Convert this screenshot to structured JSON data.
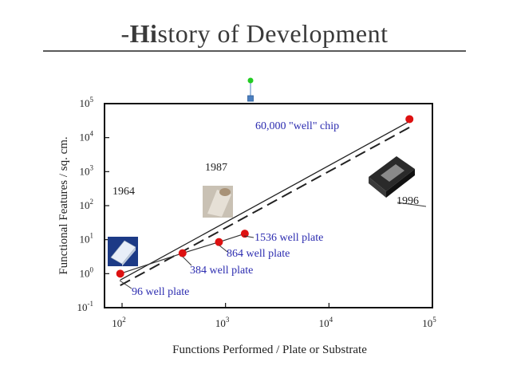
{
  "slide": {
    "title_prefix": "-",
    "title_bold": "Hi",
    "title_rest": "story of Development"
  },
  "colors": {
    "marker": "#dd1111",
    "annotation": "#2c2cb0",
    "handle_green": "#22cc22",
    "handle_blue": "#4a7fc0"
  },
  "chart_data": {
    "type": "line",
    "x_scale": "log",
    "y_scale": "log",
    "xlabel": "Functions Performed / Plate or Substrate",
    "ylabel": "Functional Features / sq. cm.",
    "xlim": [
      100,
      100000
    ],
    "ylim": [
      0.1,
      100000
    ],
    "x_ticks": [
      {
        "value": 100,
        "base": "10",
        "exp": "2"
      },
      {
        "value": 1000,
        "base": "10",
        "exp": "3"
      },
      {
        "value": 10000,
        "base": "10",
        "exp": "4"
      },
      {
        "value": 100000,
        "base": "10",
        "exp": "5"
      }
    ],
    "y_ticks": [
      {
        "value": 0.1,
        "base": "10",
        "exp": "-1"
      },
      {
        "value": 1,
        "base": "10",
        "exp": "0"
      },
      {
        "value": 10,
        "base": "10",
        "exp": "1"
      },
      {
        "value": 100,
        "base": "10",
        "exp": "2"
      },
      {
        "value": 1000,
        "base": "10",
        "exp": "3"
      },
      {
        "value": 10000,
        "base": "10",
        "exp": "4"
      },
      {
        "value": 100000,
        "base": "10",
        "exp": "5"
      }
    ],
    "points": [
      {
        "x": 96,
        "y": 1,
        "label": "96 well plate"
      },
      {
        "x": 384,
        "y": 4,
        "label": "384 well plate"
      },
      {
        "x": 864,
        "y": 8.5,
        "label": "864 well plate"
      },
      {
        "x": 1536,
        "y": 15,
        "label": "1536 well plate"
      },
      {
        "x": 60000,
        "y": 35000,
        "label": "60,000 \"well\" chip"
      }
    ],
    "trend_solid": [
      {
        "x": 96,
        "y": 0.65
      },
      {
        "x": 60000,
        "y": 30000
      }
    ],
    "trend_dashed": [
      {
        "x": 96,
        "y": 0.45
      },
      {
        "x": 60000,
        "y": 20000
      }
    ],
    "year_labels": [
      "1964",
      "1987",
      "1996"
    ],
    "grid": false,
    "legend": "none"
  }
}
